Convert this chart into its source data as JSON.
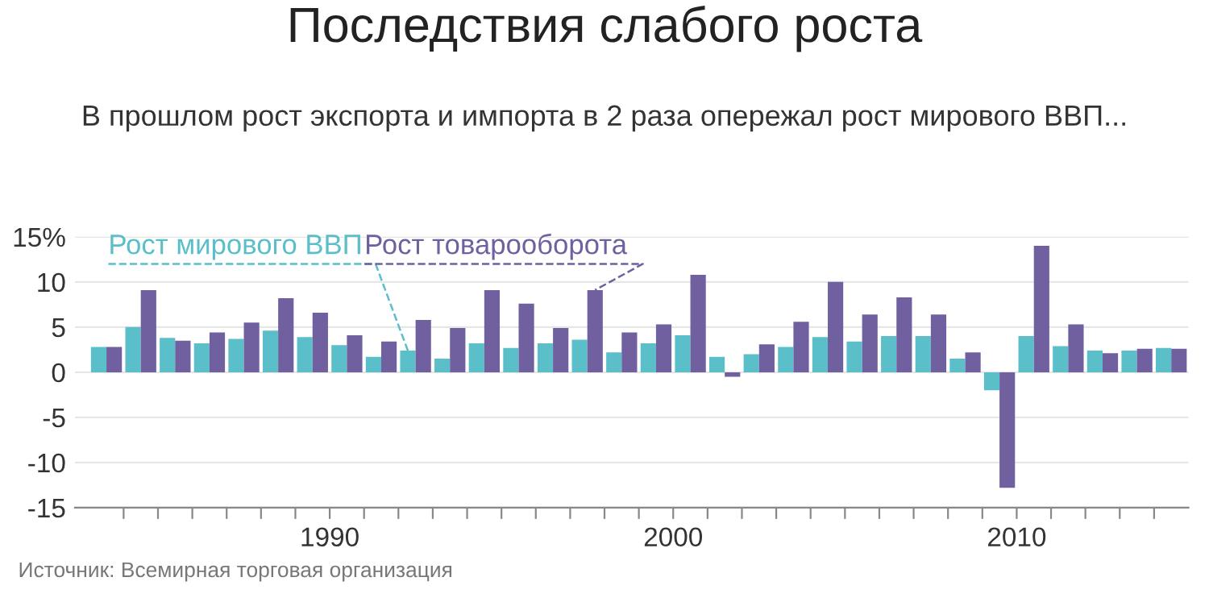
{
  "chart_data": {
    "type": "bar",
    "title": "Последствия слабого роста",
    "subtitle": "В прошлом рост экспорта и импорта в 2 раза опережал рост мирового ВВП...",
    "x": [
      "1983-07",
      "1984-07",
      "1985-07",
      "1986-07",
      "1987-07",
      "1988-07",
      "1989-07",
      "1990-07",
      "1991-07",
      "1992-07",
      "1993-07",
      "1994-07",
      "1995-07",
      "1996-07",
      "1997-07",
      "1998-07",
      "1999-07",
      "2000-07",
      "2001-07",
      "2002-07",
      "2003-07",
      "2004-07",
      "2005-07",
      "2006-07",
      "2007-07",
      "2008-07",
      "2009-07",
      "2010-07",
      "2011-07",
      "2012-07",
      "2013-07",
      "2014-07"
    ],
    "series": [
      {
        "name": "Рост мирового ВВП",
        "color": "#5bbfc9",
        "values": [
          2.8,
          5.0,
          3.8,
          3.2,
          3.7,
          4.6,
          3.9,
          3.0,
          1.7,
          2.4,
          1.5,
          3.2,
          2.7,
          3.2,
          3.6,
          2.2,
          3.2,
          4.1,
          1.7,
          2.0,
          2.8,
          3.9,
          3.4,
          4.0,
          4.0,
          1.5,
          -2.0,
          4.0,
          2.9,
          2.4,
          2.4,
          2.7
        ]
      },
      {
        "name": "Рост товарооборота",
        "color": "#7060a0",
        "values": [
          2.8,
          9.1,
          3.5,
          4.4,
          5.5,
          8.2,
          6.6,
          4.1,
          3.4,
          5.8,
          4.9,
          9.1,
          7.6,
          4.9,
          9.1,
          4.4,
          5.3,
          10.8,
          -0.5,
          3.1,
          5.6,
          10.0,
          6.4,
          8.3,
          6.4,
          2.2,
          -12.8,
          14.0,
          5.3,
          2.1,
          2.6,
          2.6
        ]
      }
    ],
    "xlim": [
      "1982-08",
      "2015-01"
    ],
    "xticks": [
      {
        "value": "1984",
        "label": null
      },
      {
        "value": "1985",
        "label": null
      },
      {
        "value": "1986",
        "label": null
      },
      {
        "value": "1987",
        "label": null
      },
      {
        "value": "1988",
        "label": null
      },
      {
        "value": "1989",
        "label": null
      },
      {
        "value": "1990",
        "label": "1990"
      },
      {
        "value": "1991",
        "label": null
      },
      {
        "value": "1992",
        "label": null
      },
      {
        "value": "1993",
        "label": null
      },
      {
        "value": "1994",
        "label": null
      },
      {
        "value": "1995",
        "label": null
      },
      {
        "value": "1996",
        "label": null
      },
      {
        "value": "1997",
        "label": null
      },
      {
        "value": "1998",
        "label": null
      },
      {
        "value": "1999",
        "label": null
      },
      {
        "value": "2000",
        "label": "2000"
      },
      {
        "value": "2001",
        "label": null
      },
      {
        "value": "2002",
        "label": null
      },
      {
        "value": "2003",
        "label": null
      },
      {
        "value": "2004",
        "label": null
      },
      {
        "value": "2005",
        "label": null
      },
      {
        "value": "2006",
        "label": null
      },
      {
        "value": "2007",
        "label": null
      },
      {
        "value": "2008",
        "label": null
      },
      {
        "value": "2009",
        "label": null
      },
      {
        "value": "2010",
        "label": "2010"
      },
      {
        "value": "2011",
        "label": null
      },
      {
        "value": "2012",
        "label": null
      },
      {
        "value": "2013",
        "label": null
      },
      {
        "value": "2014",
        "label": null
      }
    ],
    "ylim": [
      -15,
      15
    ],
    "yticks": [
      -15,
      -10,
      -5,
      0,
      5,
      10,
      {
        "value": 15,
        "label": "15%"
      }
    ],
    "grid": "y",
    "legend": false,
    "annotations": [
      "Источник: Всемирная торговая организация"
    ]
  }
}
